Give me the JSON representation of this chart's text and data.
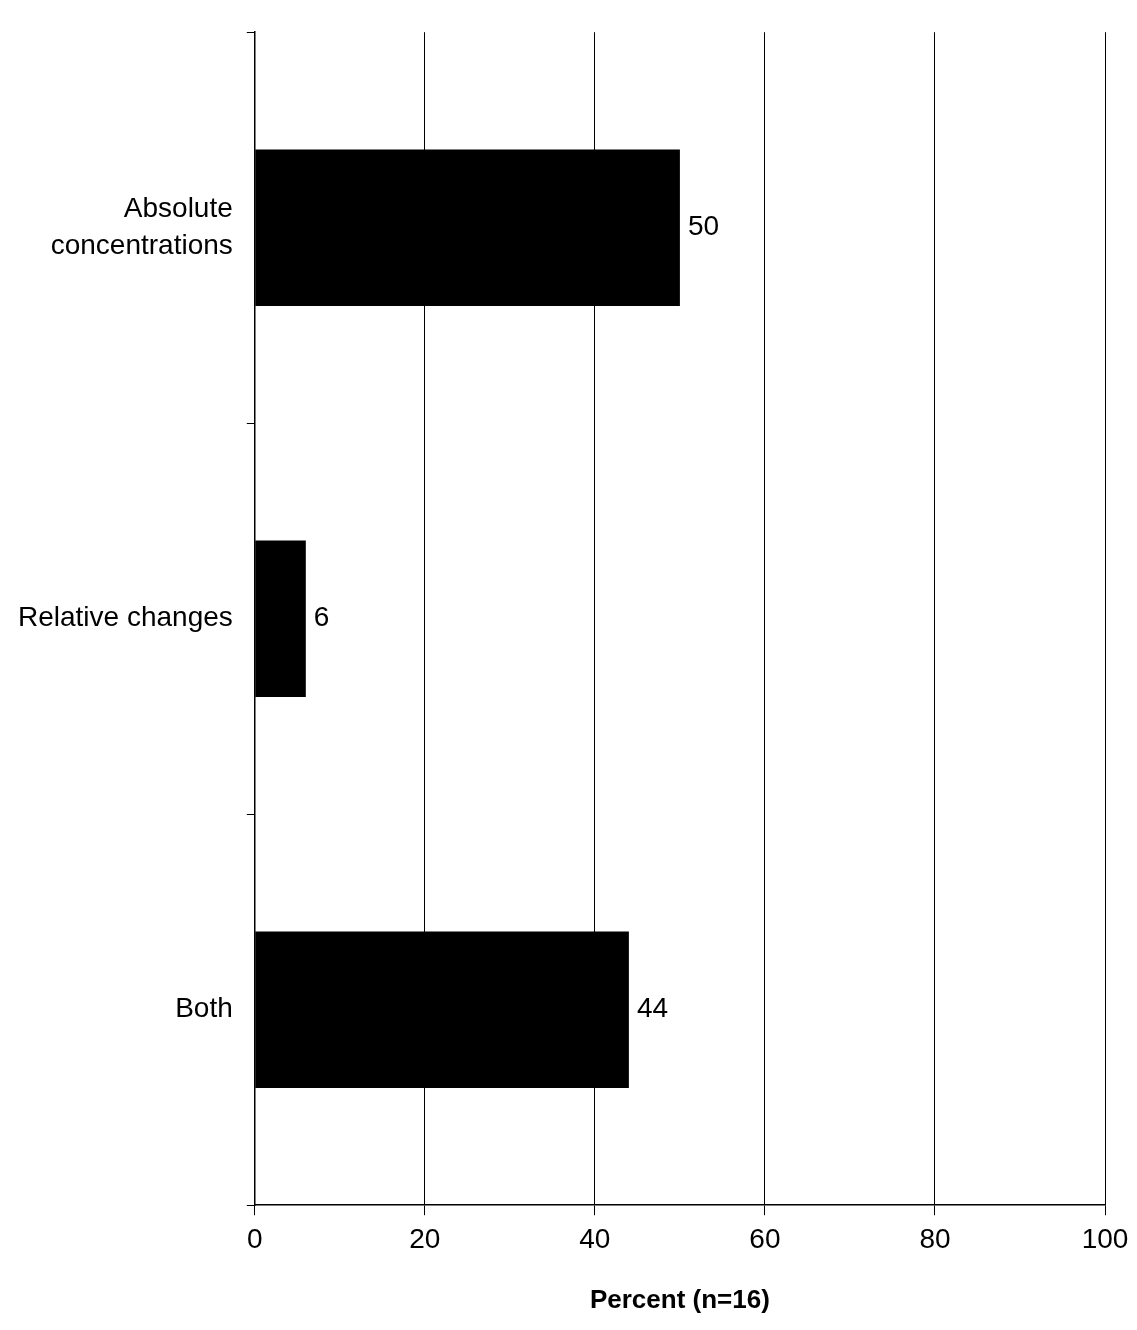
{
  "chart_data": {
    "type": "bar",
    "orientation": "horizontal",
    "categories": [
      "Absolute concentrations",
      "Relative changes",
      "Both"
    ],
    "values": [
      50,
      6,
      44
    ],
    "color": "#000000",
    "xlim": [
      0,
      100
    ],
    "xticks": [
      0,
      20,
      40,
      60,
      80,
      100
    ],
    "xlabel": "Percent (n=16)",
    "grid": "x",
    "data_labels": true,
    "legend": false
  }
}
